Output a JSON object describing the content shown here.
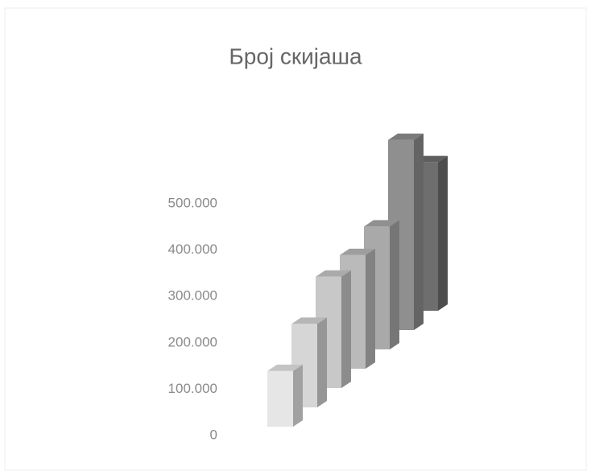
{
  "chart_data": {
    "type": "bar3d",
    "title": "Број скијаша",
    "values": [
      120000,
      180000,
      240000,
      245000,
      265000,
      410000,
      320000
    ],
    "colors": [
      "#e6e6e6",
      "#d6d6d6",
      "#c8c8c8",
      "#bababa",
      "#a9a9a9",
      "#8f8f8f",
      "#6e6e6e"
    ],
    "ylim": [
      0,
      500000
    ],
    "yticks": [
      0,
      {
        "value": 100000,
        "label": "100.000"
      },
      {
        "value": 200000,
        "label": "200.000"
      },
      {
        "value": 300000,
        "label": "300.000"
      },
      {
        "value": 400000,
        "label": "400.000"
      },
      {
        "value": 500000,
        "label": "500.000"
      }
    ]
  }
}
